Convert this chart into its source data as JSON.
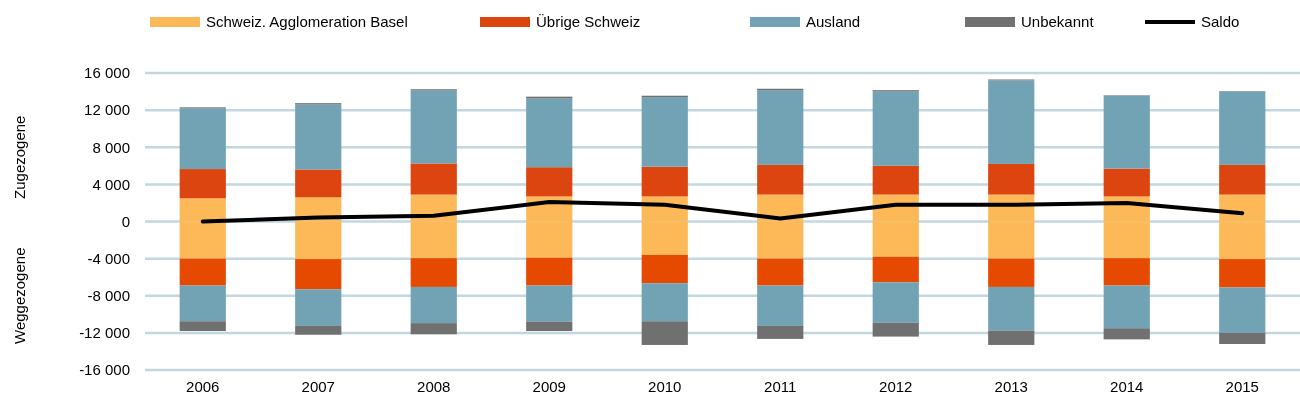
{
  "chart_data": {
    "type": "bar",
    "stacked": true,
    "categories": [
      "2006",
      "2007",
      "2008",
      "2009",
      "2010",
      "2011",
      "2012",
      "2013",
      "2014",
      "2015"
    ],
    "ylabel": "Zugezogene",
    "annotations": [
      "Weggezogene"
    ],
    "ylim": [
      -16000,
      16000
    ],
    "yticks": [
      {
        "value": -16000,
        "label": "-16 000"
      },
      {
        "value": -12000,
        "label": "-12 000"
      },
      {
        "value": -8000,
        "label": "-8 000"
      },
      {
        "value": -4000,
        "label": "-4 000"
      },
      0,
      {
        "value": 4000,
        "label": "4 000"
      },
      {
        "value": 8000,
        "label": "8 000"
      },
      {
        "value": 12000,
        "label": "12 000"
      },
      {
        "value": 16000,
        "label": "16 000"
      }
    ],
    "grid": "y",
    "legend": "top",
    "series": [
      {
        "name": "Schweiz. Agglomeration Basel",
        "color": "#fdb957",
        "values": [
          2500,
          2600,
          2900,
          2700,
          2700,
          2900,
          2900,
          2900,
          2700,
          2900
        ]
      },
      {
        "name": "Übrige Schweiz",
        "color": "#dc4510",
        "values": [
          3150,
          3000,
          3350,
          3150,
          3200,
          3200,
          3100,
          3300,
          3000,
          3200
        ]
      },
      {
        "name": "Ausland",
        "color": "#72a3b4",
        "values": [
          6550,
          7000,
          7900,
          7400,
          7500,
          8050,
          8000,
          9000,
          7850,
          7900
        ]
      },
      {
        "name": "Unbekannt",
        "color": "#707070",
        "values": [
          100,
          150,
          100,
          200,
          150,
          150,
          150,
          100,
          50,
          50
        ]
      },
      {
        "color": "#fdb957",
        "values": [
          -4000,
          -4050,
          -3950,
          -3900,
          -3600,
          -4000,
          -3800,
          -4000,
          -3950,
          -4050
        ]
      },
      {
        "color": "#e64a00",
        "values": [
          -2900,
          -3250,
          -3100,
          -3000,
          -3050,
          -2900,
          -2750,
          -3050,
          -2950,
          -3050
        ]
      },
      {
        "color": "#72a3b4",
        "values": [
          -3850,
          -3950,
          -3900,
          -3900,
          -4100,
          -4350,
          -4350,
          -4700,
          -4600,
          -4900
        ]
      },
      {
        "color": "#707070",
        "values": [
          -1050,
          -950,
          -1200,
          -1000,
          -2550,
          -1400,
          -1500,
          -1550,
          -1200,
          -1200
        ]
      },
      {
        "type": "line",
        "name": "Saldo",
        "color": "#000000",
        "values": [
          0,
          430,
          610,
          2100,
          1800,
          320,
          1800,
          1800,
          2000,
          900
        ]
      }
    ]
  }
}
